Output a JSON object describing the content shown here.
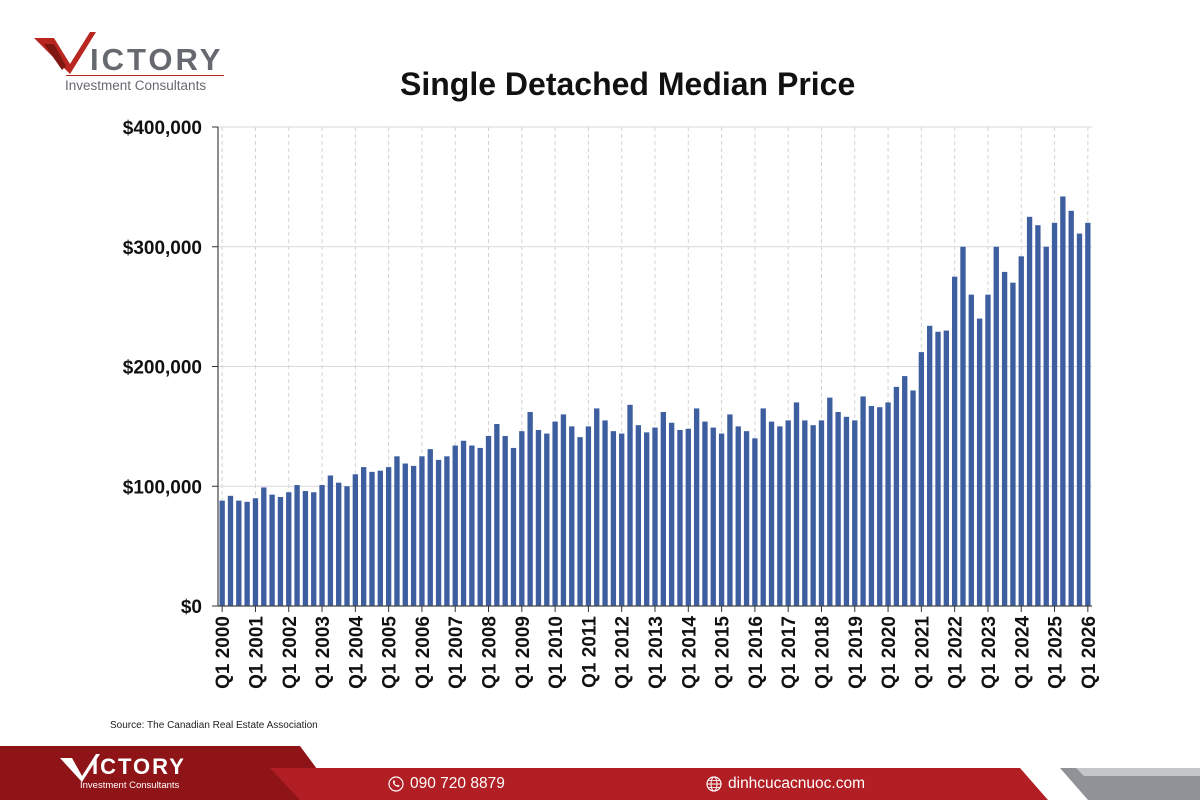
{
  "brand": {
    "logo_word": "ICTORY",
    "logo_tagline": "Investment Consultants",
    "accent_color": "#b9261f",
    "logo_text_color": "#666a70"
  },
  "chart_data": {
    "type": "bar",
    "title": "Single Detached Median Price",
    "bar_color": "#3d5fa0",
    "xlabel": "",
    "ylabel": "",
    "ylim": [
      0,
      400000
    ],
    "y_ticks": [
      {
        "value": 0,
        "label": "$0"
      },
      {
        "value": 100000,
        "label": "$100,000"
      },
      {
        "value": 200000,
        "label": "$200,000"
      },
      {
        "value": 300000,
        "label": "$300,000"
      },
      {
        "value": 400000,
        "label": "$400,000"
      }
    ],
    "x_tick_labels": [
      "Q1 2000",
      "Q1 2001",
      "Q1 2002",
      "Q1 2003",
      "Q1 2004",
      "Q1 2005",
      "Q1 2006",
      "Q1 2007",
      "Q1 2008",
      "Q1 2009",
      "Q1 2010",
      "Q1 2011",
      "Q1 2012",
      "Q1 2013",
      "Q1 2014",
      "Q1 2015",
      "Q1 2016",
      "Q1 2017",
      "Q1 2018",
      "Q1 2019",
      "Q1 2020",
      "Q1 2021",
      "Q1 2022",
      "Q1 2023",
      "Q1 2024",
      "Q1 2025",
      "Q1 2026"
    ],
    "grid": true,
    "legend": "none",
    "x": [
      "Q1 2000",
      "Q2 2000",
      "Q3 2000",
      "Q4 2000",
      "Q1 2001",
      "Q2 2001",
      "Q3 2001",
      "Q4 2001",
      "Q1 2002",
      "Q2 2002",
      "Q3 2002",
      "Q4 2002",
      "Q1 2003",
      "Q2 2003",
      "Q3 2003",
      "Q4 2003",
      "Q1 2004",
      "Q2 2004",
      "Q3 2004",
      "Q4 2004",
      "Q1 2005",
      "Q2 2005",
      "Q3 2005",
      "Q4 2005",
      "Q1 2006",
      "Q2 2006",
      "Q3 2006",
      "Q4 2006",
      "Q1 2007",
      "Q2 2007",
      "Q3 2007",
      "Q4 2007",
      "Q1 2008",
      "Q2 2008",
      "Q3 2008",
      "Q4 2008",
      "Q1 2009",
      "Q2 2009",
      "Q3 2009",
      "Q4 2009",
      "Q1 2010",
      "Q2 2010",
      "Q3 2010",
      "Q4 2010",
      "Q1 2011",
      "Q2 2011",
      "Q3 2011",
      "Q4 2011",
      "Q1 2012",
      "Q2 2012",
      "Q3 2012",
      "Q4 2012",
      "Q1 2013",
      "Q2 2013",
      "Q3 2013",
      "Q4 2013",
      "Q1 2014",
      "Q2 2014",
      "Q3 2014",
      "Q4 2014",
      "Q1 2015",
      "Q2 2015",
      "Q3 2015",
      "Q4 2015",
      "Q1 2016",
      "Q2 2016",
      "Q3 2016",
      "Q4 2016",
      "Q1 2017",
      "Q2 2017",
      "Q3 2017",
      "Q4 2017",
      "Q1 2018",
      "Q2 2018",
      "Q3 2018",
      "Q4 2018",
      "Q1 2019",
      "Q2 2019",
      "Q3 2019",
      "Q4 2019",
      "Q1 2020",
      "Q2 2020",
      "Q3 2020",
      "Q4 2020",
      "Q1 2021",
      "Q2 2021",
      "Q3 2021",
      "Q4 2021",
      "Q1 2022",
      "Q2 2022",
      "Q3 2022",
      "Q4 2022",
      "Q1 2023",
      "Q2 2023",
      "Q3 2023",
      "Q4 2023",
      "Q1 2024",
      "Q2 2024",
      "Q3 2024",
      "Q4 2024",
      "Q1 2025",
      "Q2 2025",
      "Q3 2025",
      "Q4 2025",
      "Q1 2026"
    ],
    "values": [
      88000,
      92000,
      88000,
      87000,
      90000,
      99000,
      93000,
      91000,
      95000,
      101000,
      96000,
      95000,
      101000,
      109000,
      103000,
      100000,
      110000,
      116000,
      112000,
      113000,
      116000,
      125000,
      119000,
      117000,
      125000,
      131000,
      122000,
      125000,
      134000,
      138000,
      134000,
      132000,
      142000,
      152000,
      142000,
      132000,
      146000,
      162000,
      147000,
      144000,
      154000,
      160000,
      150000,
      141000,
      150000,
      165000,
      155000,
      146000,
      144000,
      168000,
      151000,
      145000,
      149000,
      162000,
      153000,
      147000,
      148000,
      165000,
      154000,
      149000,
      144000,
      160000,
      150000,
      146000,
      140000,
      165000,
      154000,
      150000,
      155000,
      170000,
      155000,
      151000,
      155000,
      174000,
      162000,
      158000,
      155000,
      175000,
      167000,
      166000,
      170000,
      183000,
      192000,
      180000,
      212000,
      234000,
      229000,
      230000,
      275000,
      300000,
      260000,
      240000,
      260000,
      300000,
      279000,
      270000,
      292000,
      325000,
      318000,
      300000,
      320000,
      342000,
      330000,
      311000,
      320000
    ]
  },
  "source": {
    "text": "Source: The Canadian Real Estate Association"
  },
  "footer": {
    "phone": "090 720 8879",
    "website": "dinhcucacnuoc.com",
    "logo_word": "ICTORY",
    "logo_tagline": "Investment Consultants",
    "band_color": "#b11e23",
    "dark_color": "#2b2b2b"
  }
}
